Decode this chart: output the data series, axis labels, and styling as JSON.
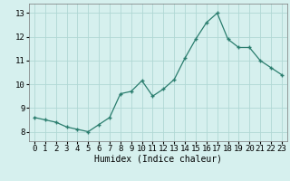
{
  "x": [
    0,
    1,
    2,
    3,
    4,
    5,
    6,
    7,
    8,
    9,
    10,
    11,
    12,
    13,
    14,
    15,
    16,
    17,
    18,
    19,
    20,
    21,
    22,
    23
  ],
  "y": [
    8.6,
    8.5,
    8.4,
    8.2,
    8.1,
    8.0,
    8.3,
    8.6,
    9.6,
    9.7,
    10.15,
    9.5,
    9.8,
    10.2,
    11.1,
    11.9,
    12.6,
    13.0,
    11.9,
    11.55,
    11.55,
    11.0,
    10.7,
    10.4
  ],
  "line_color": "#2a7d6e",
  "marker_color": "#2a7d6e",
  "bg_color": "#d6f0ee",
  "grid_color": "#b0d8d4",
  "xlabel": "Humidex (Indice chaleur)",
  "ylim": [
    7.6,
    13.4
  ],
  "xlim": [
    -0.5,
    23.5
  ],
  "yticks": [
    8,
    9,
    10,
    11,
    12,
    13
  ],
  "xticks": [
    0,
    1,
    2,
    3,
    4,
    5,
    6,
    7,
    8,
    9,
    10,
    11,
    12,
    13,
    14,
    15,
    16,
    17,
    18,
    19,
    20,
    21,
    22,
    23
  ],
  "label_fontsize": 7,
  "tick_fontsize": 6.5
}
